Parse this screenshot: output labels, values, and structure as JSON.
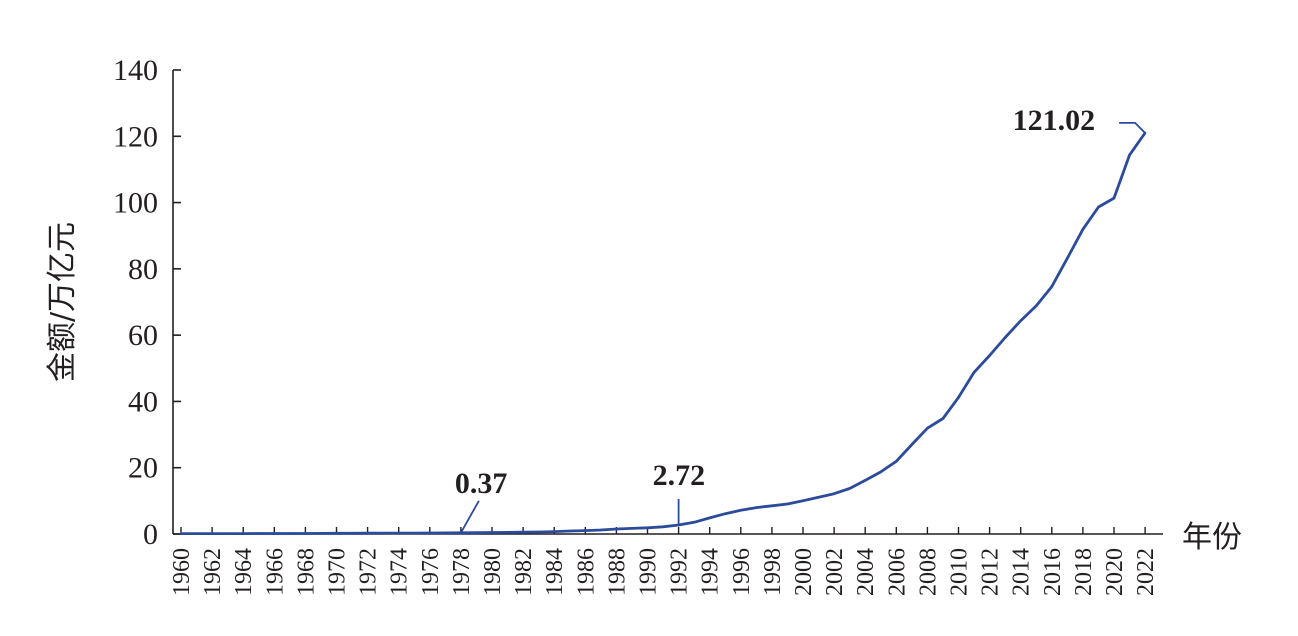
{
  "chart_data": {
    "type": "line",
    "title": "",
    "xlabel": "年份",
    "ylabel": "金额/万亿元",
    "ylim": [
      0,
      140
    ],
    "yticks": [
      0,
      20,
      40,
      60,
      80,
      100,
      120,
      140
    ],
    "xlim": [
      1960,
      2022
    ],
    "xticks": [
      1960,
      1962,
      1964,
      1966,
      1968,
      1970,
      1972,
      1974,
      1976,
      1978,
      1980,
      1982,
      1984,
      1986,
      1988,
      1990,
      1992,
      1994,
      1996,
      1998,
      2000,
      2002,
      2004,
      2006,
      2008,
      2010,
      2012,
      2014,
      2016,
      2018,
      2020,
      2022
    ],
    "grid": false,
    "series": [
      {
        "color": "#2b4b9b",
        "x": [
          1960,
          1961,
          1962,
          1963,
          1964,
          1965,
          1966,
          1967,
          1968,
          1969,
          1970,
          1971,
          1972,
          1973,
          1974,
          1975,
          1976,
          1977,
          1978,
          1979,
          1980,
          1981,
          1982,
          1983,
          1984,
          1985,
          1986,
          1987,
          1988,
          1989,
          1990,
          1991,
          1992,
          1993,
          1994,
          1995,
          1996,
          1997,
          1998,
          1999,
          2000,
          2001,
          2002,
          2003,
          2004,
          2005,
          2006,
          2007,
          2008,
          2009,
          2010,
          2011,
          2012,
          2013,
          2014,
          2015,
          2016,
          2017,
          2018,
          2019,
          2020,
          2021,
          2022
        ],
        "values": [
          0.12,
          0.12,
          0.11,
          0.11,
          0.12,
          0.14,
          0.16,
          0.16,
          0.16,
          0.18,
          0.2,
          0.22,
          0.23,
          0.25,
          0.26,
          0.28,
          0.3,
          0.32,
          0.37,
          0.4,
          0.45,
          0.49,
          0.53,
          0.6,
          0.72,
          0.9,
          1.03,
          1.21,
          1.5,
          1.7,
          1.87,
          2.18,
          2.72,
          3.53,
          4.86,
          6.13,
          7.18,
          7.97,
          8.52,
          9.06,
          10.03,
          11.09,
          12.17,
          13.74,
          16.18,
          18.73,
          21.94,
          27.01,
          31.92,
          34.85,
          41.21,
          48.79,
          53.86,
          59.3,
          64.36,
          68.89,
          74.64,
          83.2,
          91.93,
          98.65,
          101.36,
          114.37,
          121.02
        ]
      }
    ],
    "annotations": [
      {
        "label": "0.37",
        "x": 1978,
        "y": 0.37
      },
      {
        "label": "2.72",
        "x": 1992,
        "y": 2.72
      },
      {
        "label": "121.02",
        "x": 2022,
        "y": 121.02
      }
    ]
  }
}
